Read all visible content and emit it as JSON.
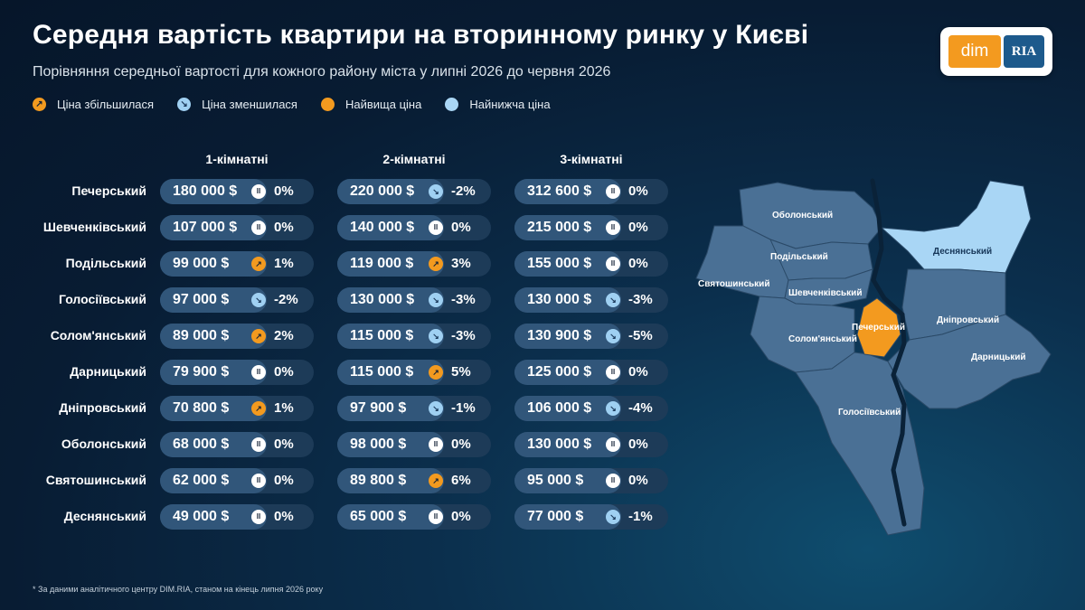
{
  "header": {
    "title": "Середня вартість квартири на вторинному ринку у Києві",
    "subtitle": "Порівняння середньої вартості для кожного району міста у липні 2026 до червня 2026"
  },
  "logo": {
    "part1": "dim",
    "part2": "RIA"
  },
  "legend": [
    {
      "label": "Ціна збільшилася",
      "kind": "up"
    },
    {
      "label": "Ціна зменшилася",
      "kind": "down"
    },
    {
      "label": "Найвища ціна",
      "kind": "high"
    },
    {
      "label": "Найнижча ціна",
      "kind": "low"
    }
  ],
  "columns": [
    "1-кімнатні",
    "2-кімнатні",
    "3-кімнатні"
  ],
  "rows": [
    {
      "district": "Печерський",
      "cells": [
        {
          "price": "180 000 $",
          "dir": "flat",
          "change": "0%"
        },
        {
          "price": "220 000 $",
          "dir": "down",
          "change": "-2%"
        },
        {
          "price": "312 600 $",
          "dir": "flat",
          "change": "0%"
        }
      ]
    },
    {
      "district": "Шевченківський",
      "cells": [
        {
          "price": "107 000 $",
          "dir": "flat",
          "change": "0%"
        },
        {
          "price": "140 000 $",
          "dir": "flat",
          "change": "0%"
        },
        {
          "price": "215 000 $",
          "dir": "flat",
          "change": "0%"
        }
      ]
    },
    {
      "district": "Подільський",
      "cells": [
        {
          "price": "99 000  $",
          "dir": "up",
          "change": "1%"
        },
        {
          "price": "119 000 $",
          "dir": "up",
          "change": "3%"
        },
        {
          "price": "155 000 $",
          "dir": "flat",
          "change": "0%"
        }
      ]
    },
    {
      "district": "Голосіївський",
      "cells": [
        {
          "price": "97 000  $",
          "dir": "down",
          "change": "-2%"
        },
        {
          "price": "130 000 $",
          "dir": "down",
          "change": "-3%"
        },
        {
          "price": "130 000 $",
          "dir": "down",
          "change": "-3%"
        }
      ]
    },
    {
      "district": "Солом'янський",
      "cells": [
        {
          "price": "89 000  $",
          "dir": "up",
          "change": "2%"
        },
        {
          "price": "115 000 $",
          "dir": "down",
          "change": "-3%"
        },
        {
          "price": "130 900 $",
          "dir": "down",
          "change": "-5%"
        }
      ]
    },
    {
      "district": "Дарницький",
      "cells": [
        {
          "price": "79 900  $",
          "dir": "flat",
          "change": "0%"
        },
        {
          "price": "115 000 $",
          "dir": "up",
          "change": "5%"
        },
        {
          "price": "125 000 $",
          "dir": "flat",
          "change": "0%"
        }
      ]
    },
    {
      "district": "Дніпровський",
      "cells": [
        {
          "price": "70 800  $",
          "dir": "up",
          "change": "1%"
        },
        {
          "price": "97 900  $",
          "dir": "down",
          "change": "-1%"
        },
        {
          "price": "106 000 $",
          "dir": "down",
          "change": "-4%"
        }
      ]
    },
    {
      "district": "Оболонський",
      "cells": [
        {
          "price": "68 000  $",
          "dir": "flat",
          "change": "0%"
        },
        {
          "price": "98 000  $",
          "dir": "flat",
          "change": "0%"
        },
        {
          "price": "130 000 $",
          "dir": "flat",
          "change": "0%"
        }
      ]
    },
    {
      "district": "Святошинський",
      "cells": [
        {
          "price": "62 000  $",
          "dir": "flat",
          "change": "0%"
        },
        {
          "price": "89 800  $",
          "dir": "up",
          "change": "6%"
        },
        {
          "price": "95 000  $",
          "dir": "flat",
          "change": "0%"
        }
      ]
    },
    {
      "district": "Деснянський",
      "cells": [
        {
          "price": "49 000  $",
          "dir": "flat",
          "change": "0%"
        },
        {
          "price": "65 000  $",
          "dir": "flat",
          "change": "0%"
        },
        {
          "price": "77 000  $",
          "dir": "down",
          "change": "-1%"
        }
      ]
    }
  ],
  "map_labels": {
    "obolonskyi": "Оболонський",
    "desnianskyi": "Деснянський",
    "podilskyi": "Подільський",
    "sviatoshynskyi": "Святошинський",
    "shevchenkivskyi": "Шевченківський",
    "dniprovskyi": "Дніпровський",
    "pecherskyi": "Печерський",
    "solomianskyi": "Солом'янський",
    "darnytskyi": "Дарницький",
    "holosiivskyi": "Голосіївський"
  },
  "colors": {
    "accent_orange": "#f39a1f",
    "accent_lightblue": "#a9d6f5",
    "map_region": "#4a7095",
    "background": "#081c33"
  },
  "footnote": "* За даними аналітичного центру DIM.RIA, станом на кінець липня 2026 року"
}
